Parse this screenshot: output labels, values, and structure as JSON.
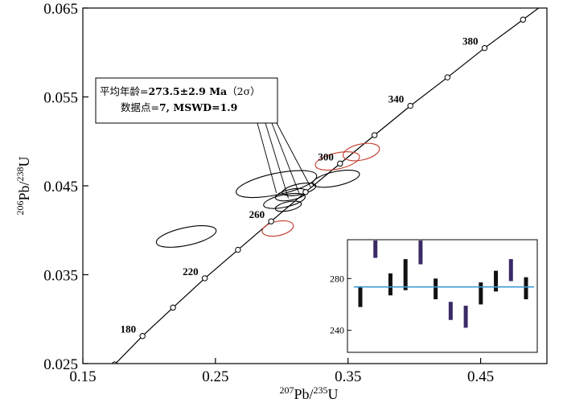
{
  "chart_data": {
    "type": "scatter",
    "title": "",
    "xlabel": {
      "base": "Pb",
      "pre_sup": "207",
      "slash": "/",
      "post_sup": "235",
      "tail": "U"
    },
    "ylabel": {
      "base": "Pb",
      "pre_sup": "206",
      "slash": "/",
      "post_sup": "238",
      "tail": "U"
    },
    "xlim": [
      0.15,
      0.5
    ],
    "ylim": [
      0.025,
      0.065
    ],
    "x_ticks": [
      {
        "value": 0.15,
        "label": "0.15"
      },
      {
        "value": 0.25,
        "label": "0.25"
      },
      {
        "value": 0.35,
        "label": "0.35"
      },
      {
        "value": 0.45,
        "label": "0.45"
      }
    ],
    "y_ticks": [
      {
        "value": 0.025,
        "label": "0.025"
      },
      {
        "value": 0.035,
        "label": "0.035"
      },
      {
        "value": 0.045,
        "label": "0.045"
      },
      {
        "value": 0.055,
        "label": "0.055"
      },
      {
        "value": 0.065,
        "label": "0.065"
      }
    ],
    "concordia": {
      "color": "#000000",
      "points": [
        {
          "x": 0.174,
          "y": 0.0249
        },
        {
          "x": 0.195,
          "y": 0.0281
        },
        {
          "x": 0.218,
          "y": 0.0313
        },
        {
          "x": 0.242,
          "y": 0.0346
        },
        {
          "x": 0.267,
          "y": 0.0378
        },
        {
          "x": 0.292,
          "y": 0.041
        },
        {
          "x": 0.318,
          "y": 0.0443
        },
        {
          "x": 0.344,
          "y": 0.0475
        },
        {
          "x": 0.37,
          "y": 0.0507
        },
        {
          "x": 0.397,
          "y": 0.054
        },
        {
          "x": 0.425,
          "y": 0.0572
        },
        {
          "x": 0.453,
          "y": 0.0605
        },
        {
          "x": 0.482,
          "y": 0.0637
        }
      ],
      "age_labels": [
        {
          "age": "180",
          "x": 0.195,
          "y": 0.0281
        },
        {
          "age": "220",
          "x": 0.242,
          "y": 0.0346
        },
        {
          "age": "260",
          "x": 0.292,
          "y": 0.041
        },
        {
          "age": "300",
          "x": 0.344,
          "y": 0.0475
        },
        {
          "age": "340",
          "x": 0.397,
          "y": 0.054
        },
        {
          "age": "380",
          "x": 0.453,
          "y": 0.0605
        }
      ]
    },
    "ellipses": [
      {
        "cx": 0.228,
        "cy": 0.0393,
        "rx": 0.023,
        "ry": 0.001,
        "color": "#000000"
      },
      {
        "cx": 0.296,
        "cy": 0.0452,
        "rx": 0.031,
        "ry": 0.0012,
        "color": "#000000"
      },
      {
        "cx": 0.302,
        "cy": 0.0433,
        "rx": 0.016,
        "ry": 0.0007,
        "color": "#000000"
      },
      {
        "cx": 0.307,
        "cy": 0.044,
        "rx": 0.012,
        "ry": 0.0006,
        "color": "#000000"
      },
      {
        "cx": 0.313,
        "cy": 0.0446,
        "rx": 0.013,
        "ry": 0.0006,
        "color": "#000000"
      },
      {
        "cx": 0.305,
        "cy": 0.0427,
        "rx": 0.01,
        "ry": 0.0005,
        "color": "#000000"
      },
      {
        "cx": 0.341,
        "cy": 0.0458,
        "rx": 0.018,
        "ry": 0.0008,
        "color": "#000000"
      },
      {
        "cx": 0.342,
        "cy": 0.0478,
        "rx": 0.017,
        "ry": 0.0009,
        "color": "#c0392b"
      },
      {
        "cx": 0.36,
        "cy": 0.0488,
        "rx": 0.014,
        "ry": 0.0009,
        "color": "#c0392b"
      },
      {
        "cx": 0.297,
        "cy": 0.0402,
        "rx": 0.012,
        "ry": 0.0008,
        "color": "#c0392b"
      }
    ],
    "annotation": {
      "line1_prefix": "平均年龄=",
      "line1_value": "273.5±2.9 Ma",
      "line1_suffix": "（2σ）",
      "line2_prefix": "数据点=",
      "line2_value": "7, MSWD=1.9",
      "pointer_targets": [
        {
          "x": 0.296,
          "y": 0.0442
        },
        {
          "x": 0.305,
          "y": 0.0436
        },
        {
          "x": 0.313,
          "y": 0.0442
        },
        {
          "x": 0.322,
          "y": 0.0448
        }
      ]
    },
    "inset": {
      "type": "bar-range",
      "ylim": [
        223,
        310
      ],
      "y_ticks": [
        {
          "value": 240,
          "label": "240"
        },
        {
          "value": 280,
          "label": "280"
        }
      ],
      "mean_line": {
        "value": 273.5,
        "color": "#3a9bd5"
      },
      "bars": [
        {
          "low": 258,
          "high": 274,
          "color": "#111111"
        },
        {
          "low": 296,
          "high": 317,
          "color": "#3b2a66"
        },
        {
          "low": 267,
          "high": 284,
          "color": "#111111"
        },
        {
          "low": 271,
          "high": 295,
          "color": "#111111"
        },
        {
          "low": 291,
          "high": 313,
          "color": "#3b2a66"
        },
        {
          "low": 264,
          "high": 280,
          "color": "#111111"
        },
        {
          "low": 248,
          "high": 262,
          "color": "#3b2a66"
        },
        {
          "low": 242,
          "high": 259,
          "color": "#3b2a66"
        },
        {
          "low": 260,
          "high": 277,
          "color": "#111111"
        },
        {
          "low": 270,
          "high": 286,
          "color": "#111111"
        },
        {
          "low": 278,
          "high": 295,
          "color": "#3b2a66"
        },
        {
          "low": 264,
          "high": 281,
          "color": "#111111"
        }
      ]
    }
  }
}
